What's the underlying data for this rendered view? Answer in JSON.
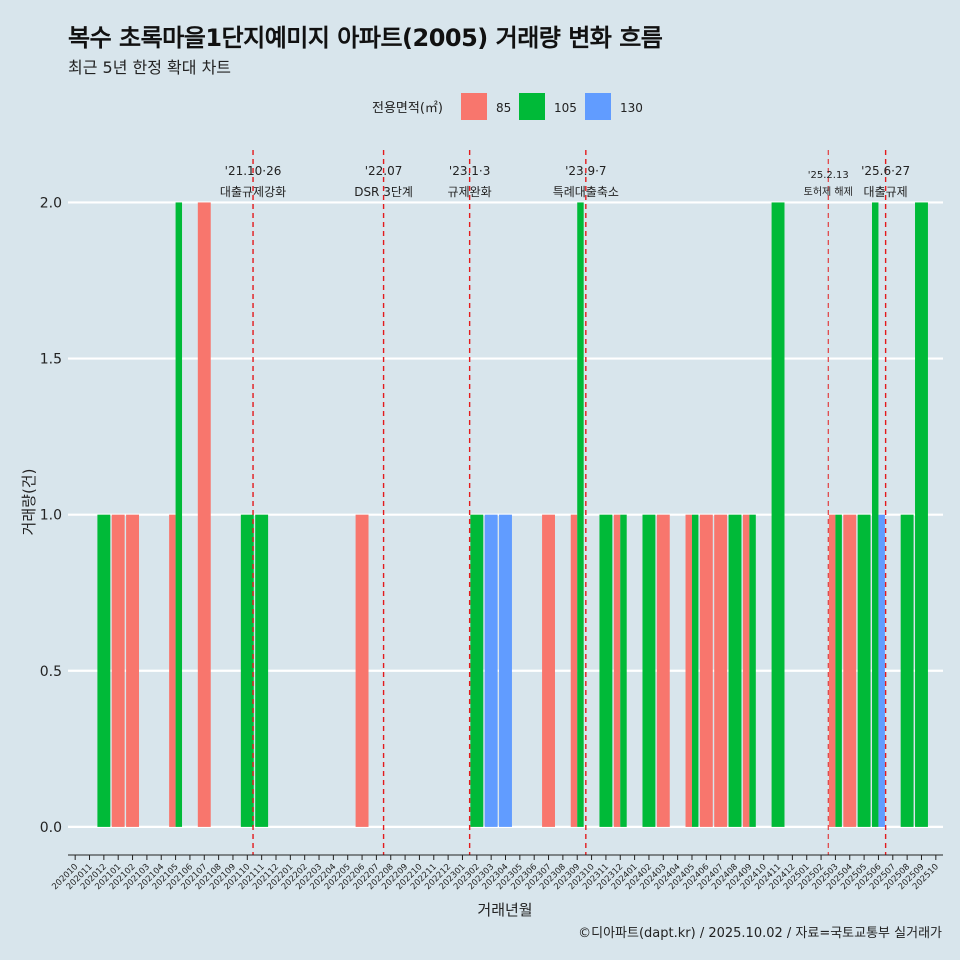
{
  "title": "복수 초록마을1단지예미지 아파트(2005) 거래량 변화 흐름",
  "subtitle": "최근 5년 한정 확대 차트",
  "caption": "©디아파트(dapt.kr) / 2025.10.02 / 자료=국토교통부 실거래가",
  "colors": {
    "85": "#f8766d",
    "105": "#00ba38",
    "130": "#619cff",
    "event_line": "#e31a1c"
  },
  "chart_data": {
    "type": "bar",
    "title": "복수 초록마을1단지예미지 아파트(2005) 거래량 변화 흐름",
    "xlabel": "거래년월",
    "ylabel": "거래량(건)",
    "ylim": [
      -0.09,
      2.2
    ],
    "yticks": [
      0.0,
      0.5,
      1.0,
      1.5,
      2.0
    ],
    "ytick_labels": [
      "0.0",
      "0.5",
      "1.0",
      "1.5",
      "2.0"
    ],
    "legend_title": "전용면적(㎡)",
    "legend_position": "top",
    "categories": [
      "202010",
      "202011",
      "202012",
      "202101",
      "202102",
      "202103",
      "202104",
      "202105",
      "202106",
      "202107",
      "202108",
      "202109",
      "202110",
      "202111",
      "202112",
      "202201",
      "202202",
      "202203",
      "202204",
      "202205",
      "202206",
      "202207",
      "202208",
      "202209",
      "202210",
      "202211",
      "202212",
      "202301",
      "202302",
      "202303",
      "202304",
      "202305",
      "202306",
      "202307",
      "202308",
      "202309",
      "202310",
      "202311",
      "202312",
      "202401",
      "202402",
      "202403",
      "202404",
      "202405",
      "202406",
      "202407",
      "202408",
      "202409",
      "202410",
      "202411",
      "202412",
      "202501",
      "202502",
      "202503",
      "202504",
      "202505",
      "202506",
      "202507",
      "202508",
      "202509",
      "202510"
    ],
    "series": [
      {
        "name": "85",
        "values": [
          0,
          0,
          0,
          1,
          1,
          0,
          0,
          1,
          0,
          2,
          0,
          0,
          0,
          0,
          0,
          0,
          0,
          0,
          0,
          0,
          1,
          0,
          0,
          0,
          0,
          0,
          0,
          0,
          0,
          0,
          0,
          0,
          0,
          1,
          0,
          1,
          0,
          0,
          1,
          0,
          0,
          1,
          0,
          1,
          1,
          1,
          0,
          1,
          0,
          0,
          0,
          0,
          0,
          1,
          1,
          0,
          0,
          0,
          0,
          0,
          0
        ]
      },
      {
        "name": "105",
        "values": [
          0,
          0,
          1,
          0,
          0,
          0,
          0,
          2,
          0,
          0,
          0,
          0,
          1,
          1,
          0,
          0,
          0,
          0,
          0,
          0,
          0,
          0,
          0,
          0,
          0,
          0,
          0,
          0,
          1,
          0,
          0,
          0,
          0,
          0,
          0,
          2,
          0,
          1,
          1,
          0,
          1,
          0,
          0,
          1,
          0,
          0,
          1,
          1,
          0,
          2,
          0,
          0,
          0,
          1,
          0,
          1,
          2,
          0,
          1,
          2,
          0
        ]
      },
      {
        "name": "130",
        "values": [
          0,
          0,
          0,
          0,
          0,
          0,
          0,
          0,
          0,
          0,
          0,
          0,
          0,
          0,
          0,
          0,
          0,
          0,
          0,
          0,
          0,
          0,
          0,
          0,
          0,
          0,
          0,
          0,
          0,
          1,
          1,
          0,
          0,
          0,
          0,
          0,
          0,
          0,
          0,
          0,
          0,
          0,
          0,
          0,
          0,
          0,
          0,
          0,
          0,
          0,
          0,
          0,
          0,
          0,
          0,
          0,
          1,
          0,
          0,
          0,
          0
        ]
      }
    ],
    "annotations": [
      {
        "x": 12.4,
        "date": "'21.10·26",
        "label": "대출규제강화",
        "small": false
      },
      {
        "x": 21.5,
        "date": "'22.07",
        "label": "DSR 3단계",
        "small": false
      },
      {
        "x": 27.5,
        "date": "'23.1·3",
        "label": "규제완화",
        "small": false
      },
      {
        "x": 35.6,
        "date": "'23.9·7",
        "label": "특례대출축소",
        "small": false
      },
      {
        "x": 52.5,
        "date": "'25.2.13",
        "label": "토허제 해제",
        "small": true
      },
      {
        "x": 56.5,
        "date": "'25.6·27",
        "label": "대출규제",
        "small": false
      }
    ]
  }
}
